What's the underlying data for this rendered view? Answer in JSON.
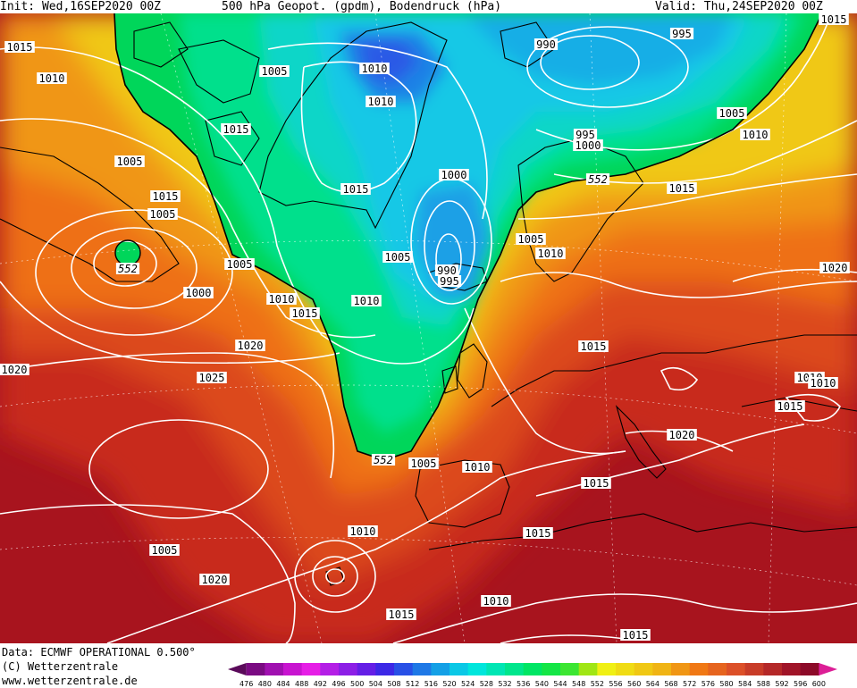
{
  "header": {
    "init": "Init: Wed,16SEP2020 00Z",
    "title": "500 hPa Geopot. (gpdm), Bodendruck (hPa)",
    "valid": "Valid: Thu,24SEP2020 00Z"
  },
  "footer": {
    "data_line": "Data: ECMWF OPERATIONAL 0.500°",
    "copyright": "(C) Wetterzentrale",
    "website": "www.wetterzentrale.de"
  },
  "colors": {
    "isobar": "#ffffff",
    "contour_552": "#000000",
    "coastline": "#000000",
    "border": "#1a1a1a"
  },
  "color_scale": {
    "values": [
      "476",
      "480",
      "484",
      "488",
      "492",
      "496",
      "500",
      "504",
      "508",
      "512",
      "516",
      "520",
      "524",
      "528",
      "532",
      "536",
      "540",
      "544",
      "548",
      "552",
      "556",
      "560",
      "564",
      "568",
      "572",
      "576",
      "580",
      "584",
      "588",
      "592",
      "596",
      "600"
    ],
    "colors": [
      "#5a0a5a",
      "#7a0a82",
      "#a010b0",
      "#c814d0",
      "#e61ee6",
      "#b41ee6",
      "#8c1ee6",
      "#641ee6",
      "#3c28e6",
      "#2850e6",
      "#1e78e6",
      "#14a0e6",
      "#0ac8e6",
      "#00e6dc",
      "#00e6b4",
      "#00e68c",
      "#00e664",
      "#14e646",
      "#3ce632",
      "#a0e614",
      "#f0f014",
      "#f0dc14",
      "#f0c814",
      "#f0b414",
      "#f09614",
      "#f07814",
      "#e6641e",
      "#dc5028",
      "#c83c28",
      "#b42828",
      "#a01428",
      "#8c0a28",
      "#dc1e96"
    ]
  },
  "pressure_labels": [
    {
      "text": "1015",
      "cls": "a"
    },
    {
      "text": "1010",
      "cls": "b"
    },
    {
      "text": "1005",
      "cls": "c"
    },
    {
      "text": "1010",
      "cls": "d"
    },
    {
      "text": "1005",
      "cls": "e"
    },
    {
      "text": "1005",
      "cls": "f"
    },
    {
      "text": "1005",
      "cls": "g"
    },
    {
      "text": "1000",
      "cls": "h"
    },
    {
      "text": "1010",
      "cls": "i"
    },
    {
      "text": "1015",
      "cls": "j"
    },
    {
      "text": "1020",
      "cls": "k"
    },
    {
      "text": "1020",
      "cls": "l"
    },
    {
      "text": "1025",
      "cls": "m"
    },
    {
      "text": "1005",
      "cls": "n"
    },
    {
      "text": "1010",
      "cls": "o"
    },
    {
      "text": "1015",
      "cls": "p"
    },
    {
      "text": "1015",
      "cls": "q"
    },
    {
      "text": "1015",
      "cls": "r"
    },
    {
      "text": "1000",
      "cls": "s"
    },
    {
      "text": "1005",
      "cls": "t"
    },
    {
      "text": "990",
      "cls": "u"
    },
    {
      "text": "995",
      "cls": "v"
    },
    {
      "text": "1010",
      "cls": "w"
    },
    {
      "text": "990",
      "cls": "x"
    },
    {
      "text": "995",
      "cls": "y"
    },
    {
      "text": "1005",
      "cls": "z"
    },
    {
      "text": "1010",
      "cls": "aa"
    },
    {
      "text": "995",
      "cls": "ab"
    },
    {
      "text": "1000",
      "cls": "ac"
    },
    {
      "text": "1005",
      "cls": "ad"
    },
    {
      "text": "1010",
      "cls": "ae"
    },
    {
      "text": "1015",
      "cls": "af"
    },
    {
      "text": "1015",
      "cls": "ag"
    },
    {
      "text": "1005",
      "cls": "ah"
    },
    {
      "text": "1010",
      "cls": "ai"
    },
    {
      "text": "1015",
      "cls": "aj"
    },
    {
      "text": "1020",
      "cls": "ak"
    },
    {
      "text": "1010",
      "cls": "al"
    },
    {
      "text": "1010",
      "cls": "am"
    },
    {
      "text": "1015",
      "cls": "an"
    },
    {
      "text": "1020",
      "cls": "ao"
    },
    {
      "text": "1015",
      "cls": "ap"
    },
    {
      "text": "1015",
      "cls": "aq"
    },
    {
      "text": "1010",
      "cls": "ar"
    },
    {
      "text": "1015",
      "cls": "as"
    },
    {
      "text": "1015",
      "cls": "at"
    },
    {
      "text": "1010",
      "cls": "au"
    },
    {
      "text": "1020",
      "cls": "av"
    }
  ],
  "contour_labels": [
    {
      "text": "552",
      "cls": "c1"
    },
    {
      "text": "552",
      "cls": "c2"
    },
    {
      "text": "552",
      "cls": "c3"
    }
  ]
}
